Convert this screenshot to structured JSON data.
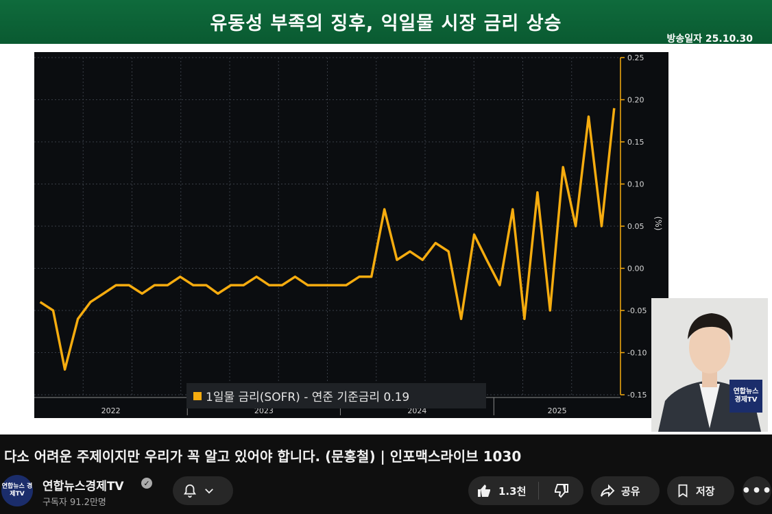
{
  "banner": {
    "title": "유동성 부족의 징후, 익일물 시장 금리 상승",
    "date": "방송일자 25.10.30"
  },
  "chart_data": {
    "type": "line",
    "legend": "1일물 금리(SOFR) - 연준 기준금리 0.19",
    "y_unit_label": "(%)",
    "y_ticks": [
      "0.25",
      "0.20",
      "0.15",
      "0.10",
      "0.05",
      "0.00",
      "-0.05",
      "-0.10",
      "-0.15"
    ],
    "y_tick_values": [
      0.25,
      0.2,
      0.15,
      0.1,
      0.05,
      0.0,
      -0.05,
      -0.1,
      -0.15
    ],
    "ylim": [
      -0.15,
      0.25
    ],
    "x_ticks": [
      "2022",
      "2023",
      "2024",
      "2025"
    ],
    "x_tick_dates": [
      "2022",
      "2023",
      "2024",
      "2025"
    ],
    "grid": true,
    "series": [
      {
        "color": "#f6ac0f",
        "x": [
          "2022-01",
          "2022-02",
          "2022-03",
          "2022-04",
          "2022-05",
          "2022-06",
          "2022-07",
          "2022-08",
          "2022-09",
          "2022-10",
          "2022-11",
          "2022-12",
          "2023-01",
          "2023-02",
          "2023-03",
          "2023-04",
          "2023-05",
          "2023-06",
          "2023-07",
          "2023-08",
          "2023-09",
          "2023-10",
          "2023-11",
          "2023-12",
          "2024-01",
          "2024-02",
          "2024-03",
          "2024-04",
          "2024-05",
          "2024-06",
          "2024-07",
          "2024-08",
          "2024-09",
          "2024-10",
          "2024-11",
          "2024-12",
          "2025-01",
          "2025-02",
          "2025-03",
          "2025-04",
          "2025-05",
          "2025-06",
          "2025-07",
          "2025-08",
          "2025-09",
          "2025-10"
        ],
        "values": [
          -0.04,
          -0.05,
          -0.12,
          -0.06,
          -0.04,
          -0.03,
          -0.02,
          -0.02,
          -0.03,
          -0.02,
          -0.02,
          -0.01,
          -0.02,
          -0.02,
          -0.03,
          -0.02,
          -0.02,
          -0.01,
          -0.02,
          -0.02,
          -0.01,
          -0.02,
          -0.02,
          -0.02,
          -0.02,
          -0.01,
          -0.01,
          0.07,
          0.01,
          0.02,
          0.01,
          0.03,
          0.02,
          -0.06,
          0.04,
          0.01,
          -0.02,
          0.07,
          -0.06,
          0.09,
          -0.05,
          0.12,
          0.05,
          0.18,
          0.05,
          0.19
        ]
      }
    ]
  },
  "presenter": {
    "logo": "연합뉴스 경제TV"
  },
  "video": {
    "title": "다소 어려운 주제이지만 우리가 꼭 알고 있어야 합니다. (문홍철) | 인포맥스라이브 1030"
  },
  "channel": {
    "name": "연합뉴스경제TV",
    "subscribers": "구독자 91.2만명",
    "avatar_text": "연합뉴스 경제TV"
  },
  "actions": {
    "likes": "1.3천",
    "share": "공유",
    "save": "저장"
  },
  "icons": {
    "bell": "bell-icon",
    "like": "thumbs-up-icon",
    "dislike": "thumbs-down-icon",
    "share": "share-arrow-icon",
    "save": "bookmark-icon",
    "more": "more-dots-icon",
    "verified": "check-circle-icon"
  }
}
